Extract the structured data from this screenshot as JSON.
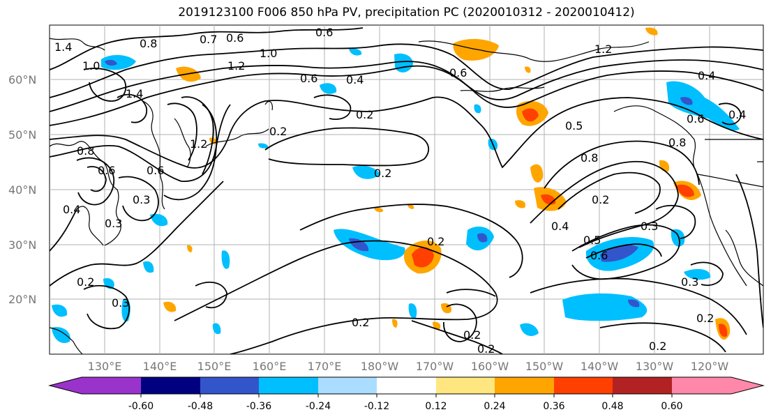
{
  "title": "2019123100 F006 850 hPa PV, precipitation PC (2020010312 - 2020010412)",
  "map": {
    "lat_labels": [
      "60°N",
      "50°N",
      "40°N",
      "30°N",
      "20°N"
    ],
    "lon_labels": [
      "130°E",
      "140°E",
      "150°E",
      "160°E",
      "170°E",
      "180°W",
      "170°W",
      "160°W",
      "150°W",
      "140°W",
      "130°W",
      "120°W"
    ],
    "contour_labels": [
      "1.4",
      "1.0",
      "0.8",
      "0.7",
      "0.6",
      "0.6",
      "1.0",
      "1.2",
      "0.6",
      "0.4",
      "1.4",
      "1.2",
      "0.2",
      "0.2",
      "0.2",
      "0.6",
      "1.2",
      "0.4",
      "0.5",
      "0.8",
      "0.6",
      "0.4",
      "0.3",
      "0.6",
      "0.4",
      "0.3",
      "0.2",
      "0.2",
      "0.2",
      "0.3",
      "0.2",
      "0.6",
      "0.3",
      "0.5",
      "0.3",
      "0.2",
      "0.2",
      "0.2",
      "0.4",
      "0.8",
      "0.6",
      "0.8",
      "0.2"
    ]
  },
  "colorbar": {
    "colors": [
      "#9933cc",
      "#000080",
      "#3355cc",
      "#00bfff",
      "#aaddff",
      "#ffffff",
      "#ffe680",
      "#ffa500",
      "#ff4000",
      "#b22222",
      "#ff88aa"
    ],
    "tick_labels": [
      "-0.60",
      "-0.48",
      "-0.36",
      "-0.24",
      "-0.12",
      "0.12",
      "0.24",
      "0.36",
      "0.48",
      "0.60"
    ]
  }
}
